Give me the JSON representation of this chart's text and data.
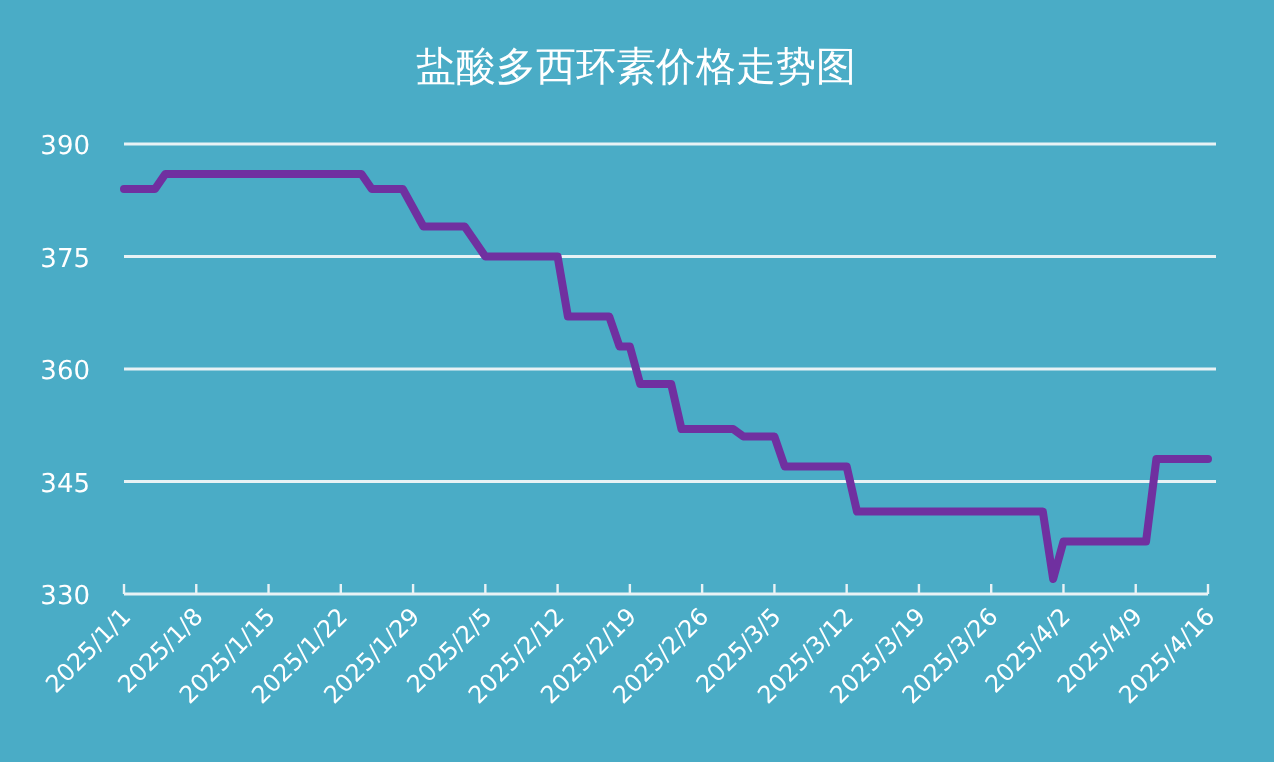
{
  "chart_data": {
    "type": "line",
    "title": "盐酸多西环素价格走势图",
    "x": [
      "2025-01-01",
      "2025-01-04",
      "2025-01-05",
      "2025-01-24",
      "2025-01-25",
      "2025-01-28",
      "2025-01-30",
      "2025-02-03",
      "2025-02-05",
      "2025-02-12",
      "2025-02-13",
      "2025-02-17",
      "2025-02-18",
      "2025-02-19",
      "2025-02-20",
      "2025-02-23",
      "2025-02-24",
      "2025-03-01",
      "2025-03-02",
      "2025-03-05",
      "2025-03-06",
      "2025-03-12",
      "2025-03-13",
      "2025-03-31",
      "2025-04-01",
      "2025-04-02",
      "2025-04-10",
      "2025-04-11",
      "2025-04-16"
    ],
    "series": [
      {
        "color": "#7030a0",
        "values": [
          384,
          384,
          386,
          386,
          384,
          384,
          379,
          379,
          375,
          375,
          367,
          367,
          363,
          363,
          358,
          358,
          352,
          352,
          351,
          351,
          347,
          347,
          341,
          341,
          332,
          337,
          337,
          348,
          348
        ]
      }
    ],
    "xlim": [
      "2025-01-01",
      "2025-04-16"
    ],
    "xticks": [
      {
        "value": "2025-01-01",
        "label": "2025/1/1"
      },
      {
        "value": "2025-01-08",
        "label": "2025/1/8"
      },
      {
        "value": "2025-01-15",
        "label": "2025/1/15"
      },
      {
        "value": "2025-01-22",
        "label": "2025/1/22"
      },
      {
        "value": "2025-01-29",
        "label": "2025/1/29"
      },
      {
        "value": "2025-02-05",
        "label": "2025/2/5"
      },
      {
        "value": "2025-02-12",
        "label": "2025/2/12"
      },
      {
        "value": "2025-02-19",
        "label": "2025/2/19"
      },
      {
        "value": "2025-02-26",
        "label": "2025/2/26"
      },
      {
        "value": "2025-03-05",
        "label": "2025/3/5"
      },
      {
        "value": "2025-03-12",
        "label": "2025/3/12"
      },
      {
        "value": "2025-03-19",
        "label": "2025/3/19"
      },
      {
        "value": "2025-03-26",
        "label": "2025/3/26"
      },
      {
        "value": "2025-04-02",
        "label": "2025/4/2"
      },
      {
        "value": "2025-04-09",
        "label": "2025/4/9"
      },
      {
        "value": "2025-04-16",
        "label": "2025/4/16"
      }
    ],
    "ylim": [
      330,
      390
    ],
    "yticks": [
      330,
      345,
      360,
      375,
      390
    ],
    "grid": "y",
    "line_style": "solid",
    "marker": "none"
  }
}
